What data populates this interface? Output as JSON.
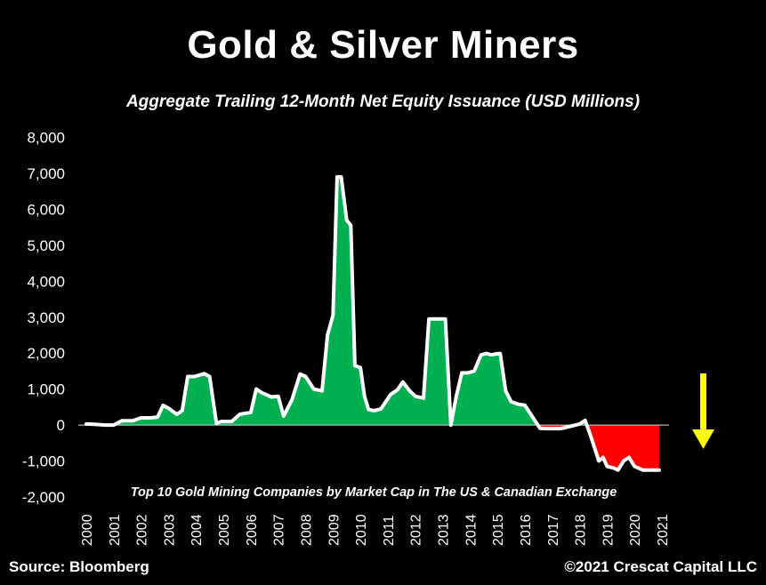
{
  "title": "Gold & Silver Miners",
  "subtitle": "Aggregate Trailing 12-Month Net Equity Issuance (USD Millions)",
  "source": "Source: Bloomberg",
  "copyright": "©2021 Crescat Capital LLC",
  "colors": {
    "background": "#000000",
    "positive_fill": "#00b050",
    "negative_fill": "#ff0000",
    "line": "#ffffff",
    "arrow": "#ffff00"
  },
  "arrow_icon": "down-arrow-icon",
  "chart_data": {
    "type": "area",
    "ylim": [
      -2000,
      8000
    ],
    "yticks": [
      8000,
      7000,
      6000,
      5000,
      4000,
      3000,
      2000,
      1000,
      0,
      -1000,
      -2000
    ],
    "ytick_labels": [
      "8,000",
      "7,000",
      "6,000",
      "5,000",
      "4,000",
      "3,000",
      "2,000",
      "1,000",
      "0",
      "-1,000",
      "-2,000"
    ],
    "xlim": [
      2000.0,
      2021.0
    ],
    "xticks": [
      2000,
      2001,
      2002,
      2003,
      2004,
      2005,
      2006,
      2007,
      2008,
      2009,
      2010,
      2011,
      2012,
      2013,
      2014,
      2015,
      2016,
      2017,
      2018,
      2019,
      2020,
      2021
    ],
    "xtick_labels": [
      "2000",
      "2001",
      "2002",
      "2003",
      "2004",
      "2005",
      "2006",
      "2007",
      "2008",
      "2009",
      "2010",
      "2011",
      "2012",
      "2013",
      "2014",
      "2015",
      "2016",
      "2017",
      "2018",
      "2019",
      "2020",
      "2021"
    ],
    "annotation": "Top 10 Gold Mining Companies by Market Cap in The US & Canadian Exchange",
    "series": [
      {
        "x": [
          2000.0,
          2000.3,
          2000.7,
          2001.0,
          2001.3,
          2001.7,
          2002.0,
          2002.3,
          2002.6,
          2002.8,
          2003.0,
          2003.3,
          2003.5,
          2003.7,
          2003.95,
          2004.3,
          2004.5,
          2004.75,
          2004.92,
          2005.3,
          2005.6,
          2006.0,
          2006.2,
          2006.4,
          2006.75,
          2007.0,
          2007.2,
          2007.5,
          2007.8,
          2008.0,
          2008.3,
          2008.6,
          2008.8,
          2009.0,
          2009.15,
          2009.3,
          2009.5,
          2009.65,
          2009.8,
          2010.0,
          2010.15,
          2010.3,
          2010.5,
          2010.75,
          2010.95,
          2011.1,
          2011.35,
          2011.55,
          2011.8,
          2012.0,
          2012.3,
          2012.5,
          2012.7,
          2012.9,
          2013.1,
          2013.3,
          2013.5,
          2013.7,
          2013.9,
          2014.15,
          2014.4,
          2014.6,
          2014.78,
          2014.95,
          2015.1,
          2015.3,
          2015.5,
          2015.75,
          2016.0,
          2016.3,
          2016.55,
          2016.8,
          2017.0,
          2017.3,
          2017.6,
          2017.85,
          2018.0,
          2018.2,
          2018.4,
          2018.7,
          2018.85,
          2019.0,
          2019.25,
          2019.4,
          2019.6,
          2019.8,
          2020.0,
          2020.15,
          2020.3,
          2020.5,
          2020.7,
          2020.9
        ],
        "values": [
          30,
          20,
          0,
          0,
          120,
          120,
          200,
          200,
          220,
          550,
          470,
          300,
          400,
          1350,
          1350,
          1430,
          1350,
          50,
          100,
          100,
          300,
          350,
          1000,
          900,
          780,
          800,
          250,
          700,
          1420,
          1350,
          1000,
          950,
          2500,
          3050,
          6900,
          6900,
          5700,
          5550,
          1650,
          1600,
          800,
          430,
          400,
          450,
          680,
          850,
          980,
          1200,
          950,
          800,
          750,
          2950,
          2950,
          2950,
          2950,
          0,
          800,
          1450,
          1450,
          1500,
          1950,
          1990,
          1950,
          1980,
          1990,
          950,
          650,
          580,
          550,
          200,
          -90,
          -100,
          -100,
          -100,
          -50,
          0,
          30,
          130,
          -300,
          -1000,
          -900,
          -1150,
          -1200,
          -1250,
          -1000,
          -900,
          -1150,
          -1200,
          -1250,
          -1250,
          -1250,
          -1250
        ]
      }
    ]
  }
}
